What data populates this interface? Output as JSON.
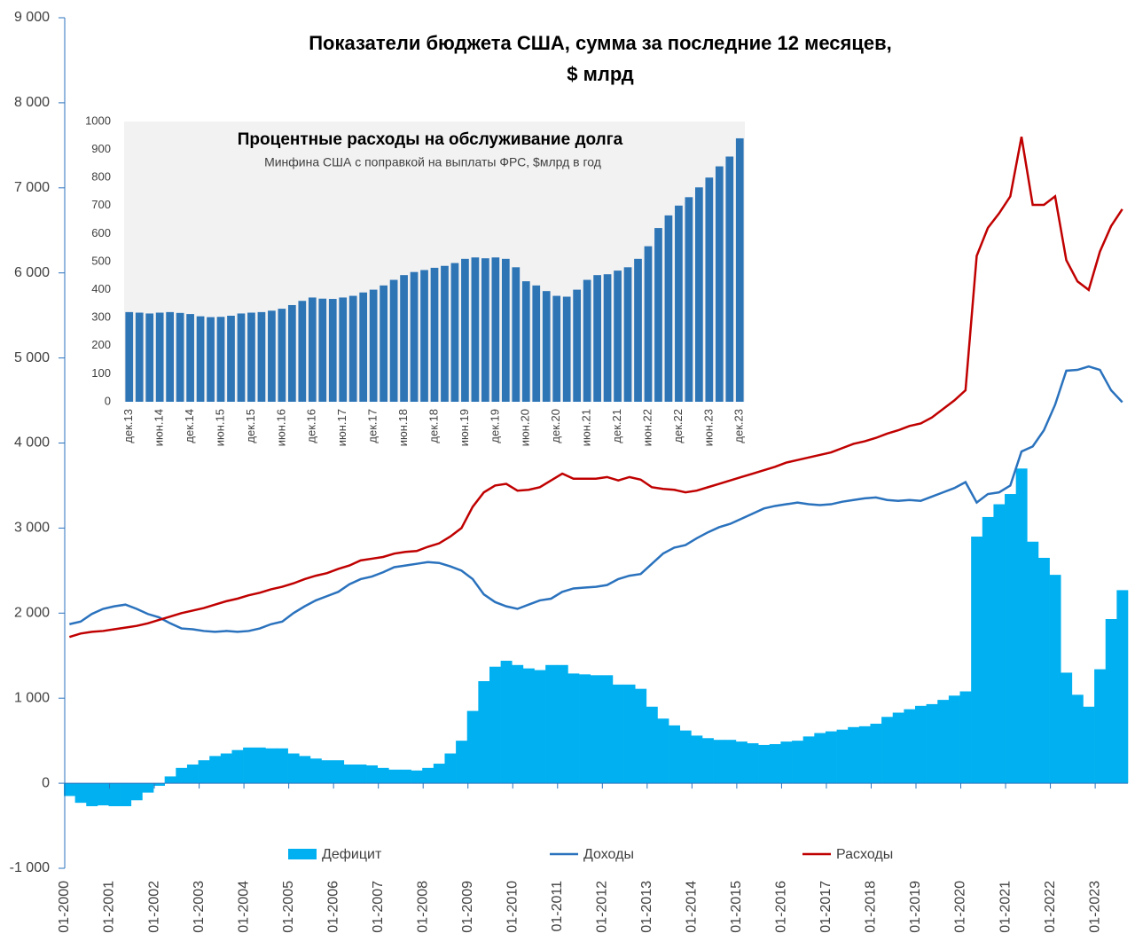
{
  "chart_data": [
    {
      "type": "combo",
      "title": [
        "Показатели бюджета США, сумма за последние 12 месяцев,",
        "$ млрд"
      ],
      "categories": [
        "01-2000",
        null,
        null,
        null,
        "01-2001",
        null,
        null,
        null,
        "01-2002",
        null,
        null,
        null,
        "01-2003",
        null,
        null,
        null,
        "01-2004",
        null,
        null,
        null,
        "01-2005",
        null,
        null,
        null,
        "01-2006",
        null,
        null,
        null,
        "01-2007",
        null,
        null,
        null,
        "01-2008",
        null,
        null,
        null,
        "01-2009",
        null,
        null,
        null,
        "01-2010",
        null,
        null,
        null,
        "01-2011",
        null,
        null,
        null,
        "01-2012",
        null,
        null,
        null,
        "01-2013",
        null,
        null,
        null,
        "01-2014",
        null,
        null,
        null,
        "01-2015",
        null,
        null,
        null,
        "01-2016",
        null,
        null,
        null,
        "01-2017",
        null,
        null,
        null,
        "01-2018",
        null,
        null,
        null,
        "01-2019",
        null,
        null,
        null,
        "01-2020",
        null,
        null,
        null,
        "01-2021",
        null,
        null,
        null,
        "01-2022",
        null,
        null,
        null,
        "01-2023",
        null,
        null
      ],
      "series": [
        {
          "name": "Дефицит",
          "type": "bar",
          "color": "#00b0f0",
          "values": [
            -150,
            -230,
            -270,
            -260,
            -270,
            -270,
            -200,
            -110,
            -30,
            80,
            180,
            220,
            270,
            320,
            350,
            390,
            420,
            420,
            410,
            410,
            350,
            320,
            290,
            270,
            270,
            220,
            220,
            210,
            180,
            160,
            160,
            150,
            180,
            230,
            350,
            500,
            850,
            1200,
            1370,
            1440,
            1390,
            1350,
            1330,
            1390,
            1390,
            1290,
            1280,
            1270,
            1270,
            1160,
            1160,
            1110,
            900,
            760,
            680,
            620,
            560,
            530,
            510,
            510,
            490,
            470,
            450,
            460,
            490,
            500,
            550,
            590,
            610,
            630,
            660,
            670,
            700,
            780,
            830,
            870,
            910,
            930,
            980,
            1030,
            1080,
            2900,
            3130,
            3280,
            3400,
            3700,
            2840,
            2650,
            2450,
            1300,
            1040,
            900,
            1340,
            1930,
            2270
          ]
        },
        {
          "name": "Доходы",
          "type": "line",
          "color": "#2a72bd",
          "values": [
            1870,
            1900,
            1990,
            2050,
            2080,
            2100,
            2050,
            1990,
            1950,
            1880,
            1820,
            1810,
            1790,
            1780,
            1790,
            1780,
            1790,
            1820,
            1870,
            1900,
            2000,
            2080,
            2150,
            2200,
            2250,
            2340,
            2400,
            2430,
            2480,
            2540,
            2560,
            2580,
            2600,
            2590,
            2550,
            2500,
            2400,
            2220,
            2130,
            2080,
            2050,
            2100,
            2150,
            2170,
            2250,
            2290,
            2300,
            2310,
            2330,
            2400,
            2440,
            2460,
            2580,
            2700,
            2770,
            2800,
            2880,
            2950,
            3010,
            3050,
            3110,
            3170,
            3230,
            3260,
            3280,
            3300,
            3280,
            3270,
            3280,
            3310,
            3330,
            3350,
            3360,
            3330,
            3320,
            3330,
            3320,
            3370,
            3420,
            3470,
            3540,
            3300,
            3400,
            3420,
            3500,
            3900,
            3960,
            4150,
            4450,
            4850,
            4860,
            4900,
            4860,
            4620,
            4480
          ]
        },
        {
          "name": "Расходы",
          "type": "line",
          "color": "#c00000",
          "values": [
            1720,
            1760,
            1780,
            1790,
            1810,
            1830,
            1850,
            1880,
            1920,
            1960,
            2000,
            2030,
            2060,
            2100,
            2140,
            2170,
            2210,
            2240,
            2280,
            2310,
            2350,
            2400,
            2440,
            2470,
            2520,
            2560,
            2620,
            2640,
            2660,
            2700,
            2720,
            2730,
            2780,
            2820,
            2900,
            3000,
            3250,
            3420,
            3500,
            3520,
            3440,
            3450,
            3480,
            3560,
            3640,
            3580,
            3580,
            3580,
            3600,
            3560,
            3600,
            3570,
            3480,
            3460,
            3450,
            3420,
            3440,
            3480,
            3520,
            3560,
            3600,
            3640,
            3680,
            3720,
            3770,
            3800,
            3830,
            3860,
            3890,
            3940,
            3990,
            4020,
            4060,
            4110,
            4150,
            4200,
            4230,
            4300,
            4400,
            4500,
            4620,
            6200,
            6530,
            6700,
            6900,
            7600,
            6800,
            6800,
            6900,
            6150,
            5900,
            5800,
            6250,
            6550,
            6750
          ]
        }
      ],
      "ylim": [
        -1000,
        9000
      ],
      "yticks": [
        {
          "value": -1000,
          "label": "-1 000"
        },
        0,
        {
          "value": 1000,
          "label": "1 000"
        },
        {
          "value": 2000,
          "label": "2 000"
        },
        {
          "value": 3000,
          "label": "3 000"
        },
        {
          "value": 4000,
          "label": "4 000"
        },
        {
          "value": 5000,
          "label": "5 000"
        },
        {
          "value": 6000,
          "label": "6 000"
        },
        {
          "value": 7000,
          "label": "7 000"
        },
        {
          "value": 8000,
          "label": "8 000"
        },
        {
          "value": 9000,
          "label": "9 000"
        }
      ],
      "grid": false,
      "legend": "bottom"
    },
    {
      "type": "bar",
      "title": "Процентные расходы на обслуживание долга",
      "subtitle": "Минфина США с поправкой на выплаты ФРС, $млрд в год",
      "color": "#2e75b6",
      "categories": [
        "дек.13",
        null,
        null,
        "июн.14",
        null,
        null,
        "дек.14",
        null,
        null,
        "июн.15",
        null,
        null,
        "дек.15",
        null,
        null,
        "июн.16",
        null,
        null,
        "дек.16",
        null,
        null,
        "июн.17",
        null,
        null,
        "дек.17",
        null,
        null,
        "июн.18",
        null,
        null,
        "дек.18",
        null,
        null,
        "июн.19",
        null,
        null,
        "дек.19",
        null,
        null,
        "июн.20",
        null,
        null,
        "дек.20",
        null,
        null,
        "июн.21",
        null,
        null,
        "дек.21",
        null,
        null,
        "июн.22",
        null,
        null,
        "дек.22",
        null,
        null,
        "июн.23",
        null,
        null,
        "дек.23"
      ],
      "values": [
        320,
        318,
        315,
        318,
        320,
        317,
        313,
        305,
        302,
        303,
        307,
        315,
        318,
        320,
        325,
        332,
        345,
        360,
        372,
        368,
        367,
        372,
        378,
        390,
        400,
        415,
        435,
        452,
        463,
        470,
        478,
        485,
        495,
        510,
        515,
        512,
        515,
        510,
        480,
        430,
        415,
        395,
        378,
        375,
        400,
        435,
        452,
        455,
        468,
        480,
        510,
        555,
        620,
        665,
        700,
        730,
        765,
        800,
        840,
        875,
        940
      ],
      "ylim": [
        0,
        1000
      ],
      "yticks": [
        0,
        100,
        200,
        300,
        400,
        500,
        600,
        700,
        800,
        900,
        1000
      ],
      "grid": false
    }
  ]
}
